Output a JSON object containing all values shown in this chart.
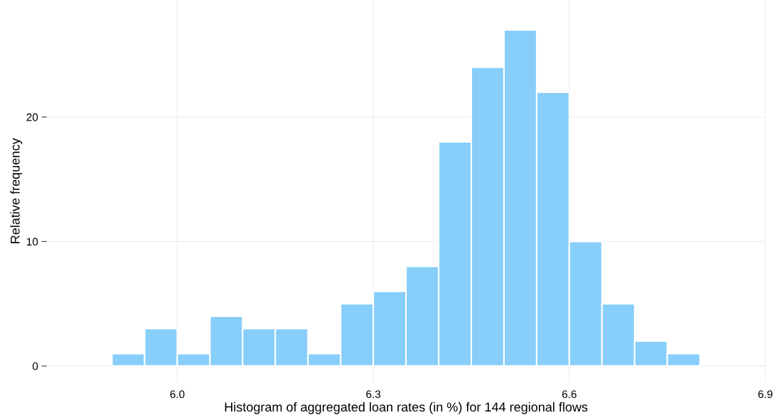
{
  "chart_data": {
    "type": "histogram",
    "xlabel": "Histogram of aggregated loan rates (in %) for 144 regional flows",
    "ylabel": "Relative frequency",
    "bins": [
      5.9,
      5.95,
      6.0,
      6.05,
      6.1,
      6.15,
      6.2,
      6.25,
      6.3,
      6.35,
      6.4,
      6.45,
      6.5,
      6.55,
      6.6,
      6.65,
      6.7,
      6.75,
      6.8
    ],
    "values": [
      1,
      3,
      1,
      4,
      3,
      3,
      1,
      5,
      6,
      8,
      18,
      24,
      27,
      22,
      10,
      5,
      2,
      1
    ],
    "color": "#87cefa",
    "xlim": [
      5.8,
      6.9
    ],
    "xticks": [
      {
        "value": 6.0,
        "label": "6.0"
      },
      {
        "value": 6.3,
        "label": "6.3"
      },
      {
        "value": 6.6,
        "label": "6.6"
      },
      {
        "value": 6.9,
        "label": "6.9"
      }
    ],
    "ylim": [
      -1.3,
      29.4
    ],
    "yticks": [
      0,
      10,
      20
    ],
    "grid": true
  }
}
